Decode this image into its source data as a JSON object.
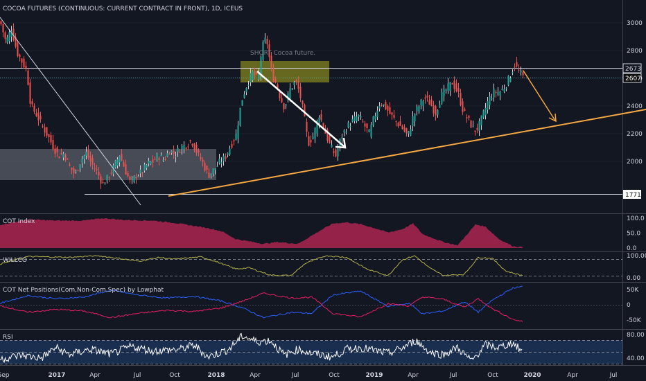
{
  "header": {
    "title": "COCOA FUTURES (CONTINUOUS: CURRENT CONTRACT IN FRONT), 1D, ICEUS"
  },
  "annotation": {
    "short_note": "SHORT Cocoa future."
  },
  "colors": {
    "background": "#131722",
    "price_candles_light": "#d1d4dc",
    "up": "#26a69a",
    "down": "#ef5350",
    "trendline": "#f5a742",
    "arrow_white": "#ffffff",
    "zone_olive": "#8a8c1e",
    "zone_grey": "#9ca0aa",
    "cot_index": "#a3234e",
    "willco": "#b5b04a",
    "net_com": "#2962ff",
    "net_noncom": "#e91e63",
    "rsi": "#ffffff",
    "rsi_band": "#1f3a6a"
  },
  "chart_data": [
    {
      "type": "candlestick",
      "name": "price",
      "x_axis_labels": [
        "Sep",
        "2017",
        "Apr",
        "Jul",
        "Oct",
        "2018",
        "Apr",
        "Jul",
        "Oct",
        "2019",
        "Apr",
        "Jul",
        "Oct",
        "2020",
        "Apr",
        "Jul"
      ],
      "y_ticks": [
        2000,
        2200,
        2400,
        2600,
        2800,
        3000
      ],
      "ylim": [
        1690,
        3080
      ],
      "price_labels": [
        {
          "value": 2673,
          "label": "2673"
        },
        {
          "value": 2607,
          "label": "2607"
        },
        {
          "value": 1771,
          "label": "1771"
        }
      ],
      "anchor_points": [
        [
          0,
          3010
        ],
        [
          8,
          2860
        ],
        [
          16,
          2960
        ],
        [
          24,
          2790
        ],
        [
          30,
          2730
        ],
        [
          38,
          2660
        ],
        [
          44,
          2400
        ],
        [
          52,
          2340
        ],
        [
          60,
          2260
        ],
        [
          68,
          2190
        ],
        [
          76,
          2110
        ],
        [
          84,
          2040
        ],
        [
          92,
          2060
        ],
        [
          100,
          1960
        ],
        [
          108,
          1905
        ],
        [
          116,
          2010
        ],
        [
          124,
          2060
        ],
        [
          132,
          1980
        ],
        [
          140,
          1920
        ],
        [
          148,
          1835
        ],
        [
          156,
          1890
        ],
        [
          164,
          1960
        ],
        [
          172,
          2050
        ],
        [
          180,
          1940
        ],
        [
          188,
          1840
        ],
        [
          196,
          1900
        ],
        [
          204,
          1920
        ],
        [
          212,
          1980
        ],
        [
          220,
          2000
        ],
        [
          228,
          2040
        ],
        [
          236,
          2010
        ],
        [
          244,
          2080
        ],
        [
          252,
          2050
        ],
        [
          260,
          2100
        ],
        [
          268,
          2120
        ],
        [
          276,
          2150
        ],
        [
          284,
          2060
        ],
        [
          292,
          1990
        ],
        [
          300,
          1900
        ],
        [
          308,
          1940
        ],
        [
          316,
          1990
        ],
        [
          324,
          2030
        ],
        [
          332,
          2110
        ],
        [
          340,
          2190
        ],
        [
          348,
          2440
        ],
        [
          356,
          2560
        ],
        [
          364,
          2640
        ],
        [
          372,
          2590
        ],
        [
          376,
          2760
        ],
        [
          380,
          2860
        ],
        [
          384,
          2890
        ],
        [
          388,
          2750
        ],
        [
          392,
          2620
        ],
        [
          398,
          2560
        ],
        [
          404,
          2460
        ],
        [
          410,
          2390
        ],
        [
          418,
          2520
        ],
        [
          426,
          2580
        ],
        [
          432,
          2490
        ],
        [
          438,
          2330
        ],
        [
          444,
          2130
        ],
        [
          452,
          2190
        ],
        [
          460,
          2340
        ],
        [
          468,
          2220
        ],
        [
          476,
          2110
        ],
        [
          484,
          2040
        ],
        [
          492,
          2180
        ],
        [
          500,
          2250
        ],
        [
          508,
          2290
        ],
        [
          516,
          2330
        ],
        [
          524,
          2270
        ],
        [
          532,
          2200
        ],
        [
          540,
          2330
        ],
        [
          548,
          2430
        ],
        [
          556,
          2390
        ],
        [
          564,
          2330
        ],
        [
          572,
          2280
        ],
        [
          580,
          2240
        ],
        [
          588,
          2180
        ],
        [
          596,
          2330
        ],
        [
          604,
          2400
        ],
        [
          612,
          2460
        ],
        [
          620,
          2420
        ],
        [
          628,
          2350
        ],
        [
          636,
          2470
        ],
        [
          644,
          2520
        ],
        [
          652,
          2570
        ],
        [
          660,
          2500
        ],
        [
          668,
          2360
        ],
        [
          676,
          2290
        ],
        [
          684,
          2220
        ],
        [
          690,
          2250
        ],
        [
          696,
          2330
        ],
        [
          704,
          2440
        ],
        [
          712,
          2500
        ],
        [
          720,
          2500
        ],
        [
          728,
          2540
        ],
        [
          734,
          2600
        ],
        [
          738,
          2650
        ],
        [
          742,
          2700
        ],
        [
          748,
          2650
        ],
        [
          754,
          2610
        ]
      ]
    },
    {
      "type": "area",
      "name": "COT Index",
      "y_ticks": [
        "100.0",
        "50.0",
        "0.0"
      ],
      "ylim": [
        0,
        100
      ],
      "anchor_points": [
        [
          0,
          78
        ],
        [
          40,
          96
        ],
        [
          80,
          92
        ],
        [
          120,
          92
        ],
        [
          150,
          100
        ],
        [
          180,
          94
        ],
        [
          220,
          92
        ],
        [
          250,
          85
        ],
        [
          280,
          74
        ],
        [
          300,
          67
        ],
        [
          320,
          56
        ],
        [
          340,
          30
        ],
        [
          360,
          22
        ],
        [
          380,
          14
        ],
        [
          400,
          20
        ],
        [
          430,
          14
        ],
        [
          460,
          56
        ],
        [
          480,
          82
        ],
        [
          500,
          86
        ],
        [
          520,
          80
        ],
        [
          540,
          67
        ],
        [
          560,
          52
        ],
        [
          580,
          63
        ],
        [
          596,
          82
        ],
        [
          610,
          46
        ],
        [
          640,
          20
        ],
        [
          660,
          9
        ],
        [
          670,
          35
        ],
        [
          686,
          79
        ],
        [
          700,
          72
        ],
        [
          720,
          30
        ],
        [
          740,
          6
        ],
        [
          754,
          3
        ]
      ]
    },
    {
      "type": "line",
      "name": "WILLCO",
      "y_ticks": [
        "100.00",
        "0.00"
      ],
      "ylim": [
        0,
        100
      ],
      "anchor_points": [
        [
          0,
          62
        ],
        [
          40,
          96
        ],
        [
          100,
          92
        ],
        [
          140,
          100
        ],
        [
          170,
          88
        ],
        [
          200,
          75
        ],
        [
          230,
          92
        ],
        [
          250,
          84
        ],
        [
          290,
          94
        ],
        [
          310,
          75
        ],
        [
          340,
          40
        ],
        [
          360,
          45
        ],
        [
          390,
          12
        ],
        [
          420,
          10
        ],
        [
          440,
          64
        ],
        [
          470,
          100
        ],
        [
          500,
          92
        ],
        [
          530,
          38
        ],
        [
          560,
          10
        ],
        [
          580,
          80
        ],
        [
          598,
          100
        ],
        [
          620,
          44
        ],
        [
          640,
          10
        ],
        [
          670,
          16
        ],
        [
          690,
          92
        ],
        [
          710,
          88
        ],
        [
          730,
          30
        ],
        [
          754,
          10
        ]
      ]
    },
    {
      "type": "line",
      "name": "COT Net Positions(Com,Non-Com,Spec) by Lowphat",
      "y_ticks": [
        "50K",
        "0",
        "-50K"
      ],
      "ylim": [
        -68000,
        68000
      ],
      "series": [
        {
          "name": "Com",
          "anchor_points": [
            [
              0,
              5000
            ],
            [
              40,
              30000
            ],
            [
              80,
              20000
            ],
            [
              120,
              25000
            ],
            [
              160,
              48000
            ],
            [
              200,
              32000
            ],
            [
              240,
              22000
            ],
            [
              280,
              28000
            ],
            [
              320,
              12000
            ],
            [
              350,
              -10000
            ],
            [
              380,
              -42000
            ],
            [
              420,
              -25000
            ],
            [
              450,
              -28000
            ],
            [
              480,
              32000
            ],
            [
              520,
              45000
            ],
            [
              560,
              -5000
            ],
            [
              590,
              5000
            ],
            [
              610,
              -30000
            ],
            [
              640,
              -20000
            ],
            [
              670,
              10000
            ],
            [
              690,
              -24000
            ],
            [
              710,
              15000
            ],
            [
              740,
              55000
            ],
            [
              754,
              60000
            ]
          ]
        },
        {
          "name": "Non-Com",
          "anchor_points": [
            [
              0,
              -2000
            ],
            [
              40,
              -25000
            ],
            [
              80,
              -15000
            ],
            [
              120,
              -20000
            ],
            [
              160,
              -42000
            ],
            [
              200,
              -28000
            ],
            [
              240,
              -18000
            ],
            [
              280,
              -22000
            ],
            [
              320,
              -10000
            ],
            [
              350,
              12000
            ],
            [
              380,
              38000
            ],
            [
              420,
              22000
            ],
            [
              450,
              25000
            ],
            [
              480,
              -28000
            ],
            [
              520,
              -40000
            ],
            [
              560,
              4000
            ],
            [
              590,
              -4000
            ],
            [
              610,
              26000
            ],
            [
              640,
              18000
            ],
            [
              670,
              -8000
            ],
            [
              690,
              20000
            ],
            [
              710,
              -12000
            ],
            [
              740,
              -48000
            ],
            [
              754,
              -55000
            ]
          ]
        }
      ]
    },
    {
      "type": "line",
      "name": "RSI",
      "y_ticks": [
        "80.00",
        "40.00"
      ],
      "ylim": [
        20,
        90
      ],
      "band": [
        30,
        70
      ],
      "anchor_points": [
        [
          0,
          38
        ],
        [
          30,
          45
        ],
        [
          60,
          40
        ],
        [
          80,
          58
        ],
        [
          100,
          46
        ],
        [
          130,
          55
        ],
        [
          160,
          47
        ],
        [
          190,
          60
        ],
        [
          220,
          52
        ],
        [
          260,
          55
        ],
        [
          280,
          62
        ],
        [
          300,
          42
        ],
        [
          330,
          55
        ],
        [
          350,
          78
        ],
        [
          370,
          68
        ],
        [
          390,
          70
        ],
        [
          410,
          45
        ],
        [
          430,
          55
        ],
        [
          450,
          48
        ],
        [
          480,
          42
        ],
        [
          500,
          55
        ],
        [
          520,
          58
        ],
        [
          560,
          48
        ],
        [
          580,
          57
        ],
        [
          600,
          70
        ],
        [
          620,
          50
        ],
        [
          640,
          46
        ],
        [
          660,
          58
        ],
        [
          680,
          35
        ],
        [
          700,
          62
        ],
        [
          720,
          58
        ],
        [
          740,
          66
        ],
        [
          754,
          50
        ]
      ]
    }
  ]
}
